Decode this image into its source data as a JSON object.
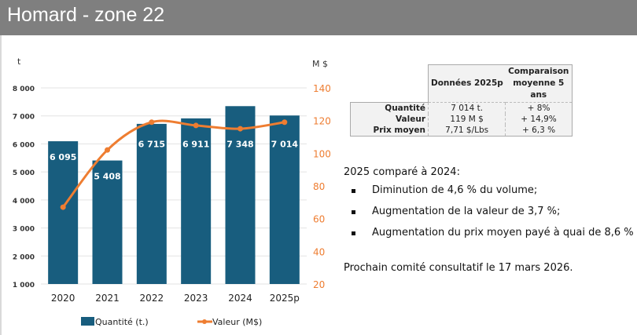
{
  "header": {
    "title": "Homard - zone 22"
  },
  "chart_data": {
    "type": "bar+line",
    "categories": [
      "2020",
      "2021",
      "2022",
      "2023",
      "2024",
      "2025p"
    ],
    "series": [
      {
        "name": "Quantité (t.)",
        "type": "bar",
        "axis": "left",
        "color": "#185d7e",
        "values": [
          6095,
          5408,
          6715,
          6911,
          7348,
          7014
        ],
        "labels": [
          "6 095",
          "5 408",
          "6 715",
          "6 911",
          "7 348",
          "7 014"
        ]
      },
      {
        "name": "Valeur (M$)",
        "type": "line",
        "axis": "right",
        "color": "#ee7d31",
        "values": [
          67,
          102,
          119,
          117,
          115,
          119
        ]
      }
    ],
    "ylabel_left": "t",
    "ylabel_right": "M $",
    "ylim_left": [
      1000,
      8000
    ],
    "yticks_left": [
      "1 000",
      "2 000",
      "3 000",
      "4 000",
      "5 000",
      "6 000",
      "7 000",
      "8 000"
    ],
    "ylim_right": [
      20,
      140
    ],
    "yticks_right": [
      "20",
      "40",
      "60",
      "80",
      "100",
      "120",
      "140"
    ],
    "grid": true,
    "legend": "bottom"
  },
  "table": {
    "headers": [
      "Données 2025p",
      "Comparaison moyenne 5 ans"
    ],
    "rows": [
      {
        "label": "Quantité",
        "value": "7 014 t.",
        "comparison": "+ 8%"
      },
      {
        "label": "Valeur",
        "value": "119 M $",
        "comparison": "+ 14,9%"
      },
      {
        "label": "Prix moyen",
        "value": "7,71 $/Lbs",
        "comparison": "+ 6,3 %"
      }
    ]
  },
  "summary": {
    "heading": "2025 comparé à 2024:",
    "bullets": [
      "Diminution  de 4,6 % du volume;",
      "Augmentation de la valeur de 3,7 %;",
      "Augmentation du prix moyen payé à quai de 8,6 %"
    ],
    "next_meeting": "Prochain comité consultatif le 17 mars 2026."
  }
}
